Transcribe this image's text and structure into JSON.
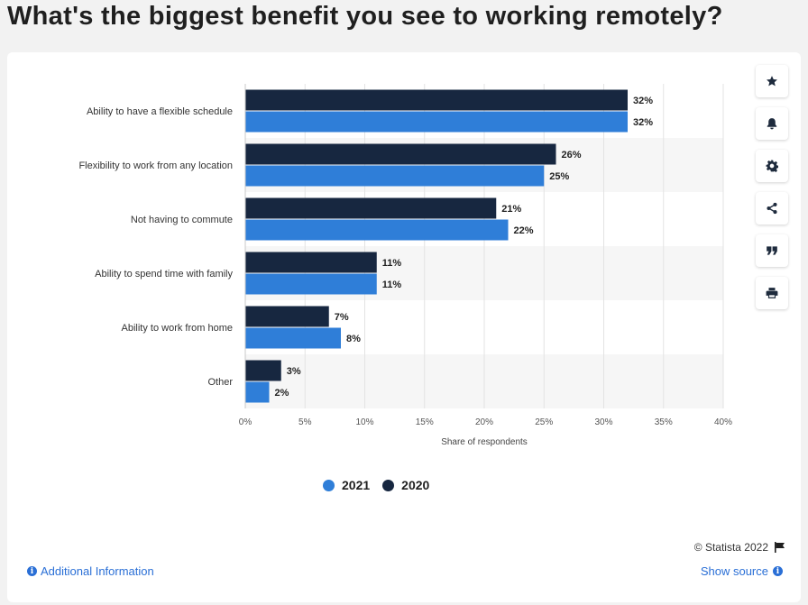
{
  "title": "What's the biggest benefit you see to working remotely?",
  "colors": {
    "series_2021": "#2f7ed8",
    "series_2020": "#172740",
    "band": "#f6f6f6",
    "grid": "#e3e3e3",
    "link": "#2a6fd6"
  },
  "toolbar": {
    "icons": [
      "star-icon",
      "bell-icon",
      "gear-icon",
      "share-icon",
      "quote-icon",
      "print-icon"
    ]
  },
  "footer": {
    "copyright": "© Statista 2022",
    "additional_info": "Additional Information",
    "show_source": "Show source"
  },
  "chart_data": {
    "type": "bar",
    "orientation": "horizontal",
    "categories": [
      "Ability to have a flexible schedule",
      "Flexibility to work from any location",
      "Not having to commute",
      "Ability to spend time with family",
      "Ability to work from home",
      "Other"
    ],
    "series": [
      {
        "name": "2020",
        "values": [
          32,
          26,
          21,
          11,
          7,
          3
        ]
      },
      {
        "name": "2021",
        "values": [
          32,
          25,
          22,
          11,
          8,
          2
        ]
      }
    ],
    "legend_order": [
      "2021",
      "2020"
    ],
    "legend_placement": "bottom-center",
    "xlabel": "Share of respondents",
    "xlim": [
      0,
      40
    ],
    "xticks": [
      "0%",
      "5%",
      "10%",
      "15%",
      "20%",
      "25%",
      "30%",
      "35%",
      "40%"
    ],
    "value_suffix": "%",
    "grid": true
  }
}
